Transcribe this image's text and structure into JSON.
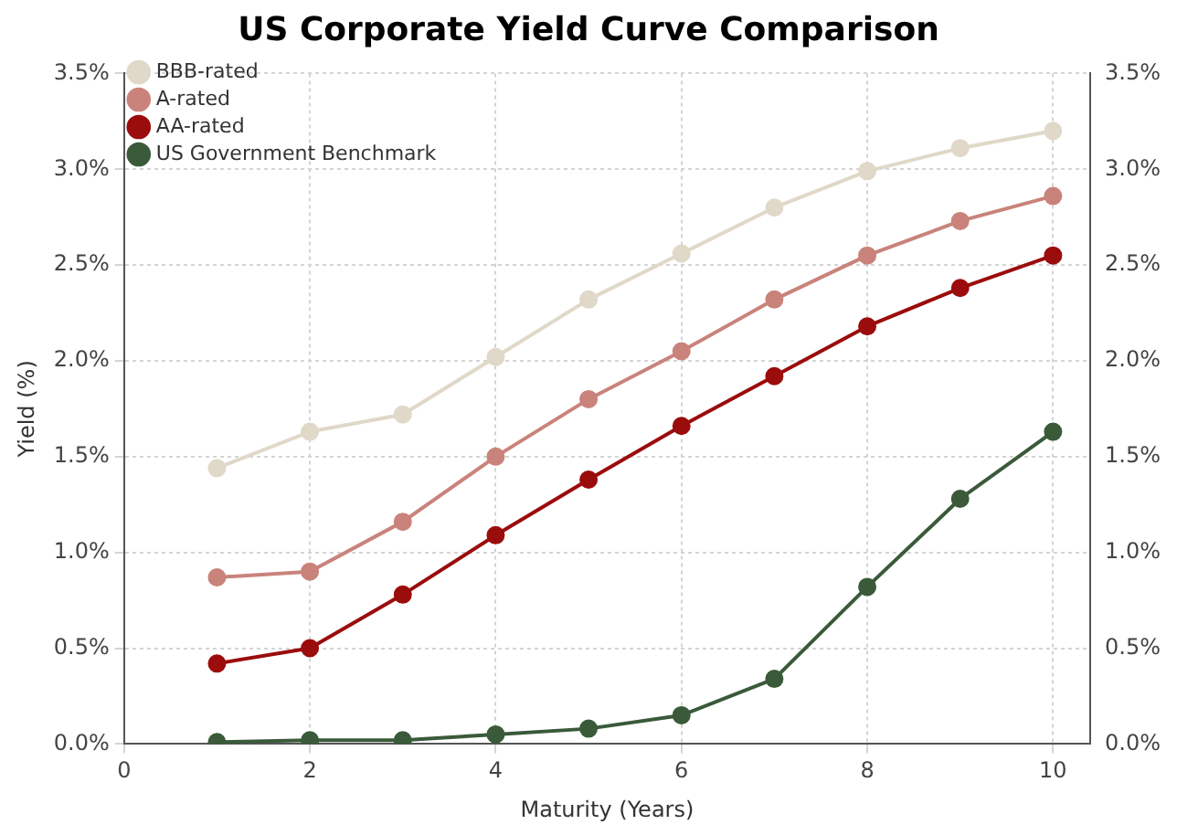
{
  "chart_data": {
    "type": "line",
    "title": "US Corporate Yield Curve Comparison",
    "xlabel": "Maturity (Years)",
    "ylabel": "Yield (%)",
    "x": [
      1,
      2,
      3,
      4,
      5,
      6,
      7,
      8,
      9,
      10
    ],
    "series": [
      {
        "name": "BBB-rated",
        "color": "#e0d8c8",
        "values": [
          1.44,
          1.63,
          1.72,
          2.02,
          2.32,
          2.56,
          2.8,
          2.99,
          3.11,
          3.2
        ]
      },
      {
        "name": "A-rated",
        "color": "#c9837b",
        "values": [
          0.87,
          0.9,
          1.16,
          1.5,
          1.8,
          2.05,
          2.32,
          2.55,
          2.73,
          2.86
        ]
      },
      {
        "name": "AA-rated",
        "color": "#9b0c0c",
        "values": [
          0.42,
          0.5,
          0.78,
          1.09,
          1.38,
          1.66,
          1.92,
          2.18,
          2.38,
          2.55
        ]
      },
      {
        "name": "US Government Benchmark",
        "color": "#3a5a3a",
        "values": [
          0.01,
          0.02,
          0.02,
          0.05,
          0.08,
          0.15,
          0.34,
          0.82,
          1.28,
          1.63
        ]
      }
    ],
    "xlim": [
      0,
      10.4
    ],
    "xticks": [
      0,
      2,
      4,
      6,
      8,
      10
    ],
    "ylim": [
      0,
      3.5
    ],
    "yticks": [
      {
        "value": 0,
        "label": "0.0%"
      },
      {
        "value": 0.5,
        "label": "0.5%"
      },
      {
        "value": 1,
        "label": "1.0%"
      },
      {
        "value": 1.5,
        "label": "1.5%"
      },
      {
        "value": 2,
        "label": "2.0%"
      },
      {
        "value": 2.5,
        "label": "2.5%"
      },
      {
        "value": 3,
        "label": "3.0%"
      },
      {
        "value": 3.5,
        "label": "3.5%"
      }
    ],
    "y2lim": [
      0,
      3.5
    ],
    "y2ticks": [
      {
        "value": 0,
        "label": "0.0%"
      },
      {
        "value": 0.5,
        "label": "0.5%"
      },
      {
        "value": 1,
        "label": "1.0%"
      },
      {
        "value": 1.5,
        "label": "1.5%"
      },
      {
        "value": 2,
        "label": "2.0%"
      },
      {
        "value": 2.5,
        "label": "2.5%"
      },
      {
        "value": 3,
        "label": "3.0%"
      },
      {
        "value": 3.5,
        "label": "3.5%"
      }
    ],
    "grid": true,
    "legend": "top left",
    "marker": "circle",
    "line_style": "solid"
  }
}
